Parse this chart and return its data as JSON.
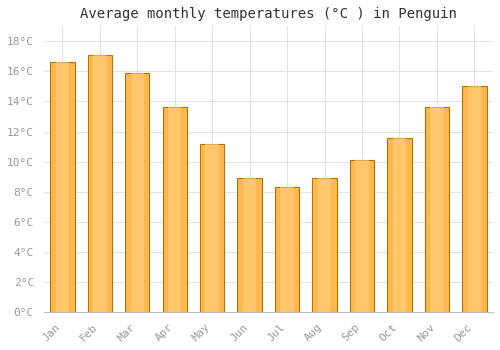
{
  "title": "Average monthly temperatures (°C ) in Penguin",
  "months": [
    "Jan",
    "Feb",
    "Mar",
    "Apr",
    "May",
    "Jun",
    "Jul",
    "Aug",
    "Sep",
    "Oct",
    "Nov",
    "Dec"
  ],
  "values": [
    16.6,
    17.1,
    15.9,
    13.6,
    11.2,
    8.9,
    8.3,
    8.9,
    10.1,
    11.6,
    13.6,
    15.0
  ],
  "bar_color_center": "#FFB84D",
  "bar_color_edge": "#E08000",
  "bar_border_color": "#B87000",
  "ylim": [
    0,
    19
  ],
  "yticks": [
    0,
    2,
    4,
    6,
    8,
    10,
    12,
    14,
    16,
    18
  ],
  "background_color": "#FFFFFF",
  "plot_background": "#FFFFFF",
  "grid_color": "#DDDDDD",
  "title_fontsize": 10,
  "tick_fontsize": 8,
  "tick_color": "#999999",
  "axis_color": "#BBBBBB",
  "font_family": "monospace"
}
